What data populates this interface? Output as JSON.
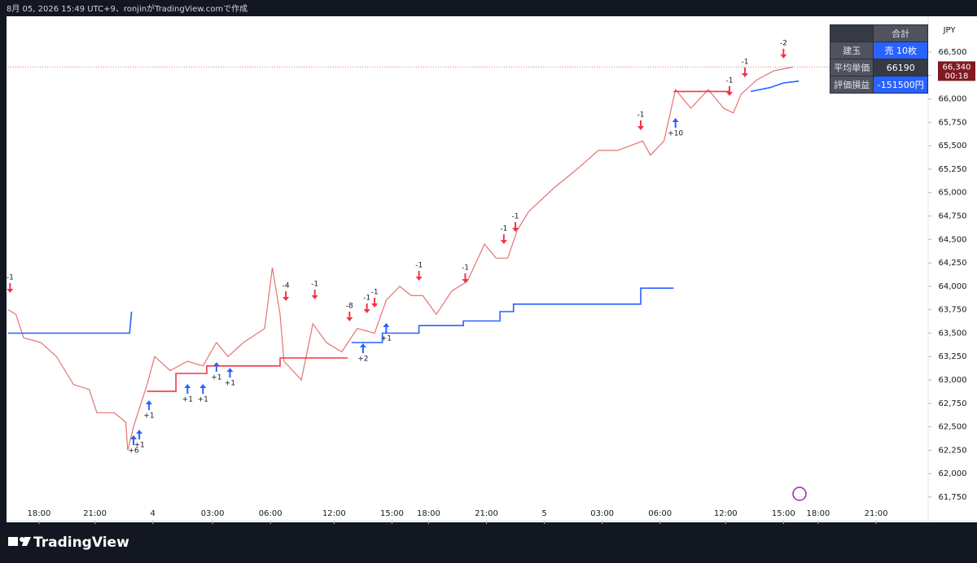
{
  "header": {
    "caption": "8月 05, 2026 15:49 UTC+9、ronjinがTradingView.comで作成",
    "currency": "JPY",
    "logo": "TradingView"
  },
  "chart_data": {
    "type": "line",
    "xlim": [
      0,
      47.7
    ],
    "ylim": [
      61498,
      66882
    ],
    "xticks": [
      {
        "value": 1.6,
        "label": "18:00"
      },
      {
        "value": 4.5,
        "label": "21:00"
      },
      {
        "value": 7.5,
        "label": "4"
      },
      {
        "value": 10.6,
        "label": "03:00"
      },
      {
        "value": 13.6,
        "label": "06:00"
      },
      {
        "value": 16.9,
        "label": "12:00"
      },
      {
        "value": 19.9,
        "label": "15:00"
      },
      {
        "value": 21.8,
        "label": "18:00"
      },
      {
        "value": 24.8,
        "label": "21:00"
      },
      {
        "value": 27.8,
        "label": "5"
      },
      {
        "value": 30.8,
        "label": "03:00"
      },
      {
        "value": 33.8,
        "label": "06:00"
      },
      {
        "value": 37.2,
        "label": "12:00"
      },
      {
        "value": 40.2,
        "label": "15:00"
      },
      {
        "value": 42.0,
        "label": "18:00"
      },
      {
        "value": 45.0,
        "label": "21:00"
      }
    ],
    "yticks": [
      {
        "value": 61750,
        "label": "61,750"
      },
      {
        "value": 62000,
        "label": "62,000"
      },
      {
        "value": 62250,
        "label": "62,250"
      },
      {
        "value": 62500,
        "label": "62,500"
      },
      {
        "value": 62750,
        "label": "62,750"
      },
      {
        "value": 63000,
        "label": "63,000"
      },
      {
        "value": 63250,
        "label": "63,250"
      },
      {
        "value": 63500,
        "label": "63,500"
      },
      {
        "value": 63750,
        "label": "63,750"
      },
      {
        "value": 64000,
        "label": "64,000"
      },
      {
        "value": 64250,
        "label": "64,250"
      },
      {
        "value": 64500,
        "label": "64,500"
      },
      {
        "value": 64750,
        "label": "64,750"
      },
      {
        "value": 65000,
        "label": "65,000"
      },
      {
        "value": 65250,
        "label": "65,250"
      },
      {
        "value": 65500,
        "label": "65,500"
      },
      {
        "value": 65750,
        "label": "65,750"
      },
      {
        "value": 66000,
        "label": "66,000"
      },
      {
        "value": 66250,
        "label": "66,250"
      },
      {
        "value": 66500,
        "label": "66,500"
      }
    ],
    "last_price": {
      "value": 66340,
      "label": "66,340",
      "countdown": "00:18"
    },
    "series": [
      {
        "color": "#e57373",
        "x": [
          0,
          0.4,
          0.8,
          1.7,
          2.5,
          3.4,
          4.2,
          4.6,
          5.5,
          6.1,
          6.2,
          6.5,
          7.2,
          7.6,
          8.4,
          9.3,
          10.1,
          10.8,
          11.4,
          12.2,
          13.3,
          13.7,
          14.1,
          14.3,
          15.2,
          15.8,
          16.5,
          17.3,
          18.1,
          19.0,
          19.6,
          20.3,
          20.9,
          21.5,
          22.2,
          23.0,
          23.8,
          24.7,
          25.3,
          25.9,
          26.4,
          27.0,
          28.3,
          29.5,
          30.6,
          31.6,
          32.9,
          33.3,
          34.0,
          34.6,
          35.4,
          36.3,
          37.1,
          37.6,
          38.0,
          38.8,
          39.7,
          40.7
        ],
        "values": [
          63750,
          63700,
          63450,
          63400,
          63250,
          62950,
          62900,
          62650,
          62650,
          62550,
          62250,
          62500,
          62950,
          63250,
          63100,
          63200,
          63150,
          63400,
          63250,
          63400,
          63550,
          64200,
          63700,
          63200,
          63000,
          63600,
          63400,
          63300,
          63550,
          63500,
          63850,
          64000,
          63900,
          63900,
          63700,
          63950,
          64050,
          64450,
          64300,
          64300,
          64600,
          64800,
          65050,
          65250,
          65450,
          65450,
          65550,
          65400,
          65550,
          66100,
          65900,
          66100,
          65900,
          65850,
          66050,
          66200,
          66300,
          66340
        ]
      },
      {
        "color": "#2962ff",
        "x": [
          0,
          6.3,
          6.4,
          null,
          17.8,
          19.4,
          19.4,
          21.3,
          21.3,
          23.6,
          23.6,
          25.5,
          25.5,
          26.2,
          26.2,
          32.8,
          32.8,
          34.5,
          null,
          38.5,
          39.5,
          40.2,
          41.0
        ],
        "values": [
          63500,
          63500,
          63730,
          null,
          63400,
          63400,
          63500,
          63500,
          63580,
          63580,
          63630,
          63630,
          63730,
          63730,
          63810,
          63810,
          63980,
          63980,
          null,
          66080,
          66120,
          66170,
          66190
        ]
      },
      {
        "color": "#f23645",
        "x": [
          7.2,
          8.7,
          8.7,
          10.3,
          10.3,
          14.1,
          14.1,
          17.6,
          null,
          34.5,
          37.4
        ],
        "values": [
          62880,
          62880,
          63070,
          63070,
          63150,
          63150,
          63235,
          63235,
          null,
          66080,
          66080
        ]
      }
    ],
    "trades": [
      {
        "x": 0.1,
        "value": 63930,
        "label": "-1",
        "side": "sell"
      },
      {
        "x": 6.5,
        "value": 62410,
        "label": "+6",
        "side": "buy"
      },
      {
        "x": 6.8,
        "value": 62470,
        "label": "+1",
        "side": "buy"
      },
      {
        "x": 7.3,
        "value": 62783,
        "label": "+1",
        "side": "buy"
      },
      {
        "x": 9.3,
        "value": 62957,
        "label": "+1",
        "side": "buy"
      },
      {
        "x": 10.1,
        "value": 62957,
        "label": "+1",
        "side": "buy"
      },
      {
        "x": 10.8,
        "value": 63191,
        "label": "+1",
        "side": "buy"
      },
      {
        "x": 11.5,
        "value": 63130,
        "label": "+1",
        "side": "buy"
      },
      {
        "x": 14.4,
        "value": 63843,
        "label": "-4",
        "side": "sell"
      },
      {
        "x": 15.9,
        "value": 63860,
        "label": "-1",
        "side": "sell"
      },
      {
        "x": 17.7,
        "value": 63626,
        "label": "-8",
        "side": "sell"
      },
      {
        "x": 18.6,
        "value": 63712,
        "label": "-1",
        "side": "sell"
      },
      {
        "x": 19.0,
        "value": 63773,
        "label": "-1",
        "side": "sell"
      },
      {
        "x": 18.4,
        "value": 63391,
        "label": "+2",
        "side": "buy"
      },
      {
        "x": 19.6,
        "value": 63608,
        "label": "+1",
        "side": "buy"
      },
      {
        "x": 21.3,
        "value": 64060,
        "label": "-1",
        "side": "sell"
      },
      {
        "x": 23.7,
        "value": 64034,
        "label": "-1",
        "side": "sell"
      },
      {
        "x": 25.7,
        "value": 64450,
        "label": "-1",
        "side": "sell"
      },
      {
        "x": 26.3,
        "value": 64581,
        "label": "-1",
        "side": "sell"
      },
      {
        "x": 32.8,
        "value": 65666,
        "label": "-1",
        "side": "sell"
      },
      {
        "x": 34.6,
        "value": 65797,
        "label": "+10",
        "side": "buy"
      },
      {
        "x": 37.4,
        "value": 66031,
        "label": "-1",
        "side": "sell"
      },
      {
        "x": 38.2,
        "value": 66231,
        "label": "-1",
        "side": "sell"
      },
      {
        "x": 40.2,
        "value": 66431,
        "label": "-2",
        "side": "sell"
      }
    ]
  },
  "panel": {
    "header": "合計",
    "rows": [
      [
        "建玉",
        "売 10枚"
      ],
      [
        "平均単価",
        "66190"
      ],
      [
        "評価損益",
        "-151500円"
      ]
    ]
  }
}
